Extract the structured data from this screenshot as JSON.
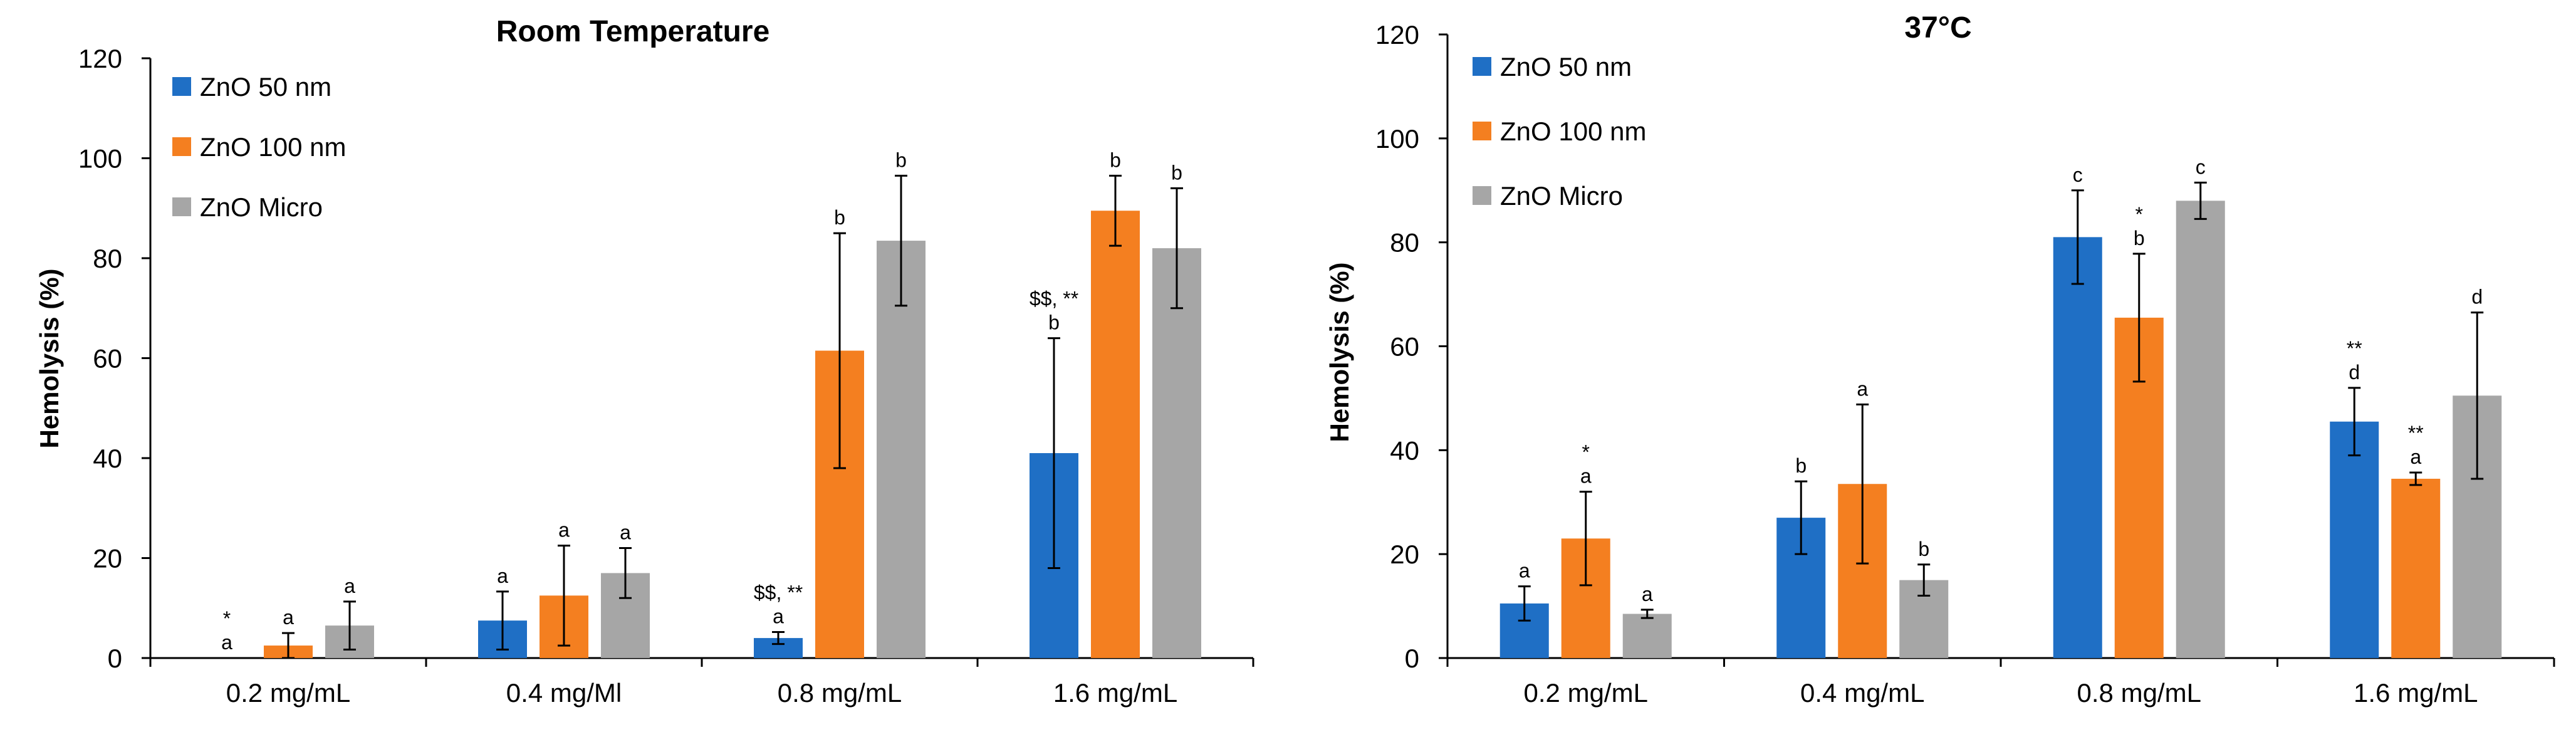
{
  "chart_data": [
    {
      "type": "bar",
      "title": "Room Temperature",
      "ylabel": "Hemolysis (%)",
      "xlabel": "",
      "ylim": [
        0,
        120
      ],
      "yticks": [
        0,
        20,
        40,
        60,
        80,
        100,
        120
      ],
      "categories": [
        "0.2 mg/mL",
        "0.4 mg/Ml",
        "0.8 mg/mL",
        "1.6 mg/mL"
      ],
      "legend_position": "top-left",
      "series": [
        {
          "name": "ZnO 50 nm",
          "color": "#1f6fc5",
          "values": [
            0,
            7.5,
            4,
            41
          ],
          "errors": [
            0,
            5.8,
            1.2,
            23
          ],
          "labels": [
            "a",
            "a",
            "a",
            "b"
          ],
          "marks": [
            "*",
            "",
            "$$, **",
            "$$, **"
          ]
        },
        {
          "name": "ZnO 100 nm",
          "color": "#f47f20",
          "values": [
            2.5,
            12.5,
            61.5,
            89.5
          ],
          "errors": [
            2.5,
            10,
            23.5,
            7
          ],
          "labels": [
            "a",
            "a",
            "b",
            "b"
          ],
          "marks": [
            "",
            "",
            "",
            ""
          ]
        },
        {
          "name": "ZnO Micro",
          "color": "#a6a6a6",
          "values": [
            6.5,
            17,
            83.5,
            82
          ],
          "errors": [
            4.8,
            5,
            13,
            12
          ],
          "labels": [
            "a",
            "a",
            "b",
            "b"
          ],
          "marks": [
            "",
            "",
            "",
            ""
          ]
        }
      ]
    },
    {
      "type": "bar",
      "title": "37°C",
      "ylabel": "Hemolysis (%)",
      "xlabel": "",
      "ylim": [
        0,
        120
      ],
      "yticks": [
        0,
        20,
        40,
        60,
        80,
        100,
        120
      ],
      "categories": [
        "0.2 mg/mL",
        "0.4 mg/mL",
        "0.8 mg/mL",
        "1.6 mg/mL"
      ],
      "legend_position": "top-left",
      "series": [
        {
          "name": "ZnO 50 nm",
          "color": "#1f6fc5",
          "values": [
            10.5,
            27,
            81,
            45.5
          ],
          "errors": [
            3.3,
            7,
            9,
            6.5
          ],
          "labels": [
            "a",
            "b",
            "c",
            "d"
          ],
          "marks": [
            "",
            "",
            "",
            "**"
          ]
        },
        {
          "name": "ZnO 100 nm",
          "color": "#f47f20",
          "values": [
            23,
            33.5,
            65.5,
            34.5
          ],
          "errors": [
            9,
            15.3,
            12.3,
            1.2
          ],
          "labels": [
            "a",
            "a",
            "b",
            "a"
          ],
          "marks": [
            "*",
            "",
            "*",
            "**"
          ]
        },
        {
          "name": "ZnO Micro",
          "color": "#a6a6a6",
          "values": [
            8.5,
            15,
            88,
            50.5
          ],
          "errors": [
            0.8,
            3,
            3.5,
            16
          ],
          "labels": [
            "a",
            "b",
            "c",
            "d"
          ],
          "marks": [
            "",
            "",
            "",
            ""
          ]
        }
      ]
    }
  ]
}
